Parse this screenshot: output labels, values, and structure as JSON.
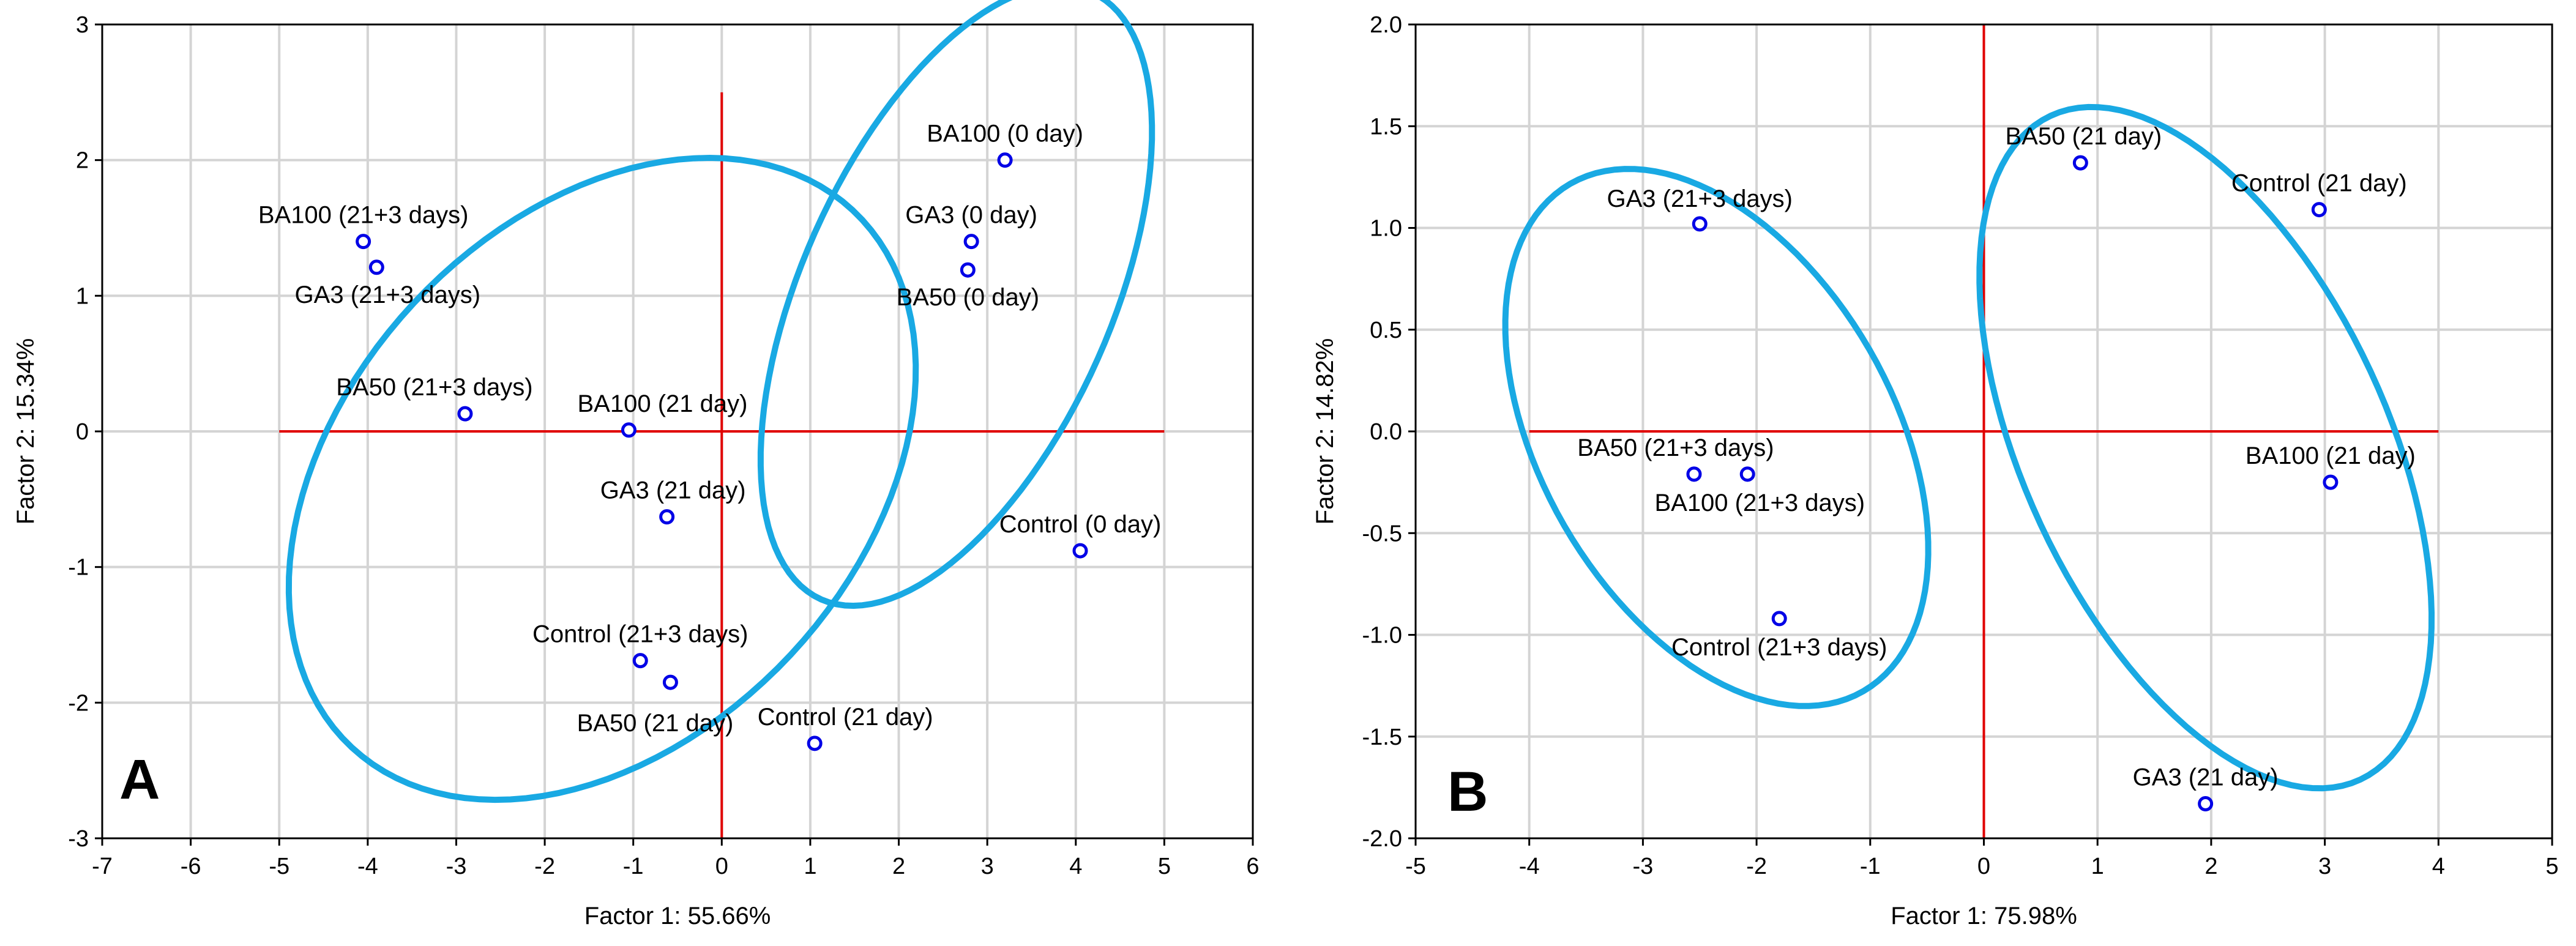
{
  "chart_data": [
    {
      "id": "A",
      "type": "scatter",
      "panel_label": "A",
      "xlabel": "Factor 1: 55.66%",
      "ylabel": "Factor 2: 15.34%",
      "xlim": [
        -7,
        6
      ],
      "ylim": [
        -3,
        3
      ],
      "x_ticks": [
        -7,
        -6,
        -5,
        -4,
        -3,
        -2,
        -1,
        0,
        1,
        2,
        3,
        4,
        5,
        6
      ],
      "y_ticks": [
        -3,
        -2,
        -1,
        0,
        1,
        2,
        3
      ],
      "grid": true,
      "reference_lines": {
        "vertical": {
          "x": 0,
          "y": [
            -3,
            2.5
          ]
        },
        "horizontal": {
          "y": 0,
          "x": [
            -5,
            5
          ]
        }
      },
      "points": [
        {
          "label": "BA100 (0 day)",
          "x": 3.2,
          "y": 2.0
        },
        {
          "label": "GA3 (0 day)",
          "x": 2.82,
          "y": 1.4
        },
        {
          "label": "BA50 (0 day)",
          "x": 2.78,
          "y": 1.19
        },
        {
          "label": "Control (0 day)",
          "x": 4.05,
          "y": -0.88
        },
        {
          "label": "BA100 (21+3 days)",
          "x": -4.05,
          "y": 1.4
        },
        {
          "label": "GA3 (21+3 days)",
          "x": -3.9,
          "y": 1.21
        },
        {
          "label": "BA50 (21+3 days)",
          "x": -2.9,
          "y": 0.13
        },
        {
          "label": "BA100 (21 day)",
          "x": -1.05,
          "y": 0.01
        },
        {
          "label": "GA3 (21 day)",
          "x": -0.62,
          "y": -0.63
        },
        {
          "label": "Control (21+3 days)",
          "x": -0.92,
          "y": -1.69
        },
        {
          "label": "BA50 (21 day)",
          "x": -0.58,
          "y": -1.85
        },
        {
          "label": "Control (21 day)",
          "x": 1.05,
          "y": -2.3
        }
      ],
      "groups": [
        {
          "cx": 2.65,
          "cy": 1.0,
          "rx": 1.75,
          "ry": 2.45,
          "angle_deg": -24
        },
        {
          "cx": -1.35,
          "cy": -0.35,
          "rx": 4.15,
          "ry": 1.9,
          "angle_deg": 47
        }
      ]
    },
    {
      "id": "B",
      "type": "scatter",
      "panel_label": "B",
      "xlabel": "Factor 1: 75.98%",
      "ylabel": "Factor 2: 14.82%",
      "xlim": [
        -5,
        5
      ],
      "ylim": [
        -2.0,
        2.0
      ],
      "x_ticks": [
        -5,
        -4,
        -3,
        -2,
        -1,
        0,
        1,
        2,
        3,
        4,
        5
      ],
      "y_ticks": [
        "-2.0",
        "-1.5",
        "-1.0",
        "-0.5",
        "0.0",
        "0.5",
        "1.0",
        "1.5",
        "2.0"
      ],
      "grid": true,
      "reference_lines": {
        "vertical": {
          "x": 0,
          "y": [
            -2.0,
            2.0
          ]
        },
        "horizontal": {
          "y": 0,
          "x": [
            -4,
            4
          ]
        }
      },
      "points": [
        {
          "label": "GA3 (21+3 days)",
          "x": -2.5,
          "y": 1.02
        },
        {
          "label": "BA50 (21 day)",
          "x": 0.85,
          "y": 1.32
        },
        {
          "label": "Control (21 day)",
          "x": 2.95,
          "y": 1.09
        },
        {
          "label": "BA50 (21+3 days)",
          "x": -2.55,
          "y": -0.21
        },
        {
          "label": "BA100 (21+3 days)",
          "x": -2.08,
          "y": -0.21
        },
        {
          "label": "BA100 (21 day)",
          "x": 3.05,
          "y": -0.25
        },
        {
          "label": "Control (21+3 days)",
          "x": -1.8,
          "y": -0.92
        },
        {
          "label": "GA3 (21 day)",
          "x": 1.95,
          "y": -1.83
        }
      ],
      "groups": [
        {
          "cx": -2.35,
          "cy": -0.03,
          "rx": 1.55,
          "ry": 1.44,
          "angle_deg": 30
        },
        {
          "cx": 1.95,
          "cy": -0.08,
          "rx": 1.6,
          "ry": 1.8,
          "angle_deg": 25
        }
      ]
    }
  ]
}
